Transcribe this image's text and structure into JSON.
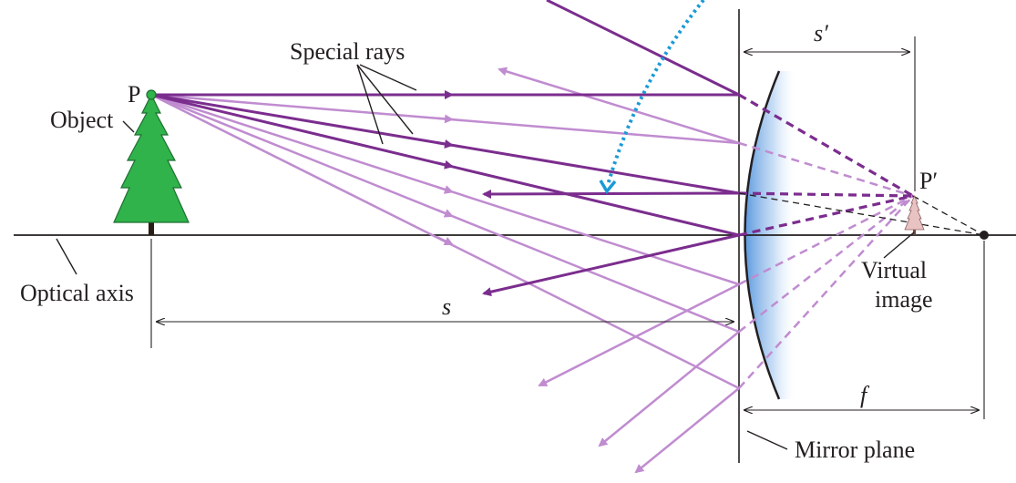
{
  "labels": {
    "special_rays": "Special rays",
    "point_object": "P",
    "object": "Object",
    "optical_axis": "Optical axis",
    "s": "s",
    "s_prime": "s′",
    "point_image": "P′",
    "virtual_line1": "Virtual",
    "virtual_line2": "image",
    "f": "f",
    "mirror_plane": "Mirror plane"
  },
  "colors": {
    "ray_dark": "#7b2d8e",
    "ray_light": "#c08cd0",
    "mirror_blue": "#3d86d9",
    "tree_green": "#2fb34a",
    "callout_arrow": "#1a9ad6"
  }
}
